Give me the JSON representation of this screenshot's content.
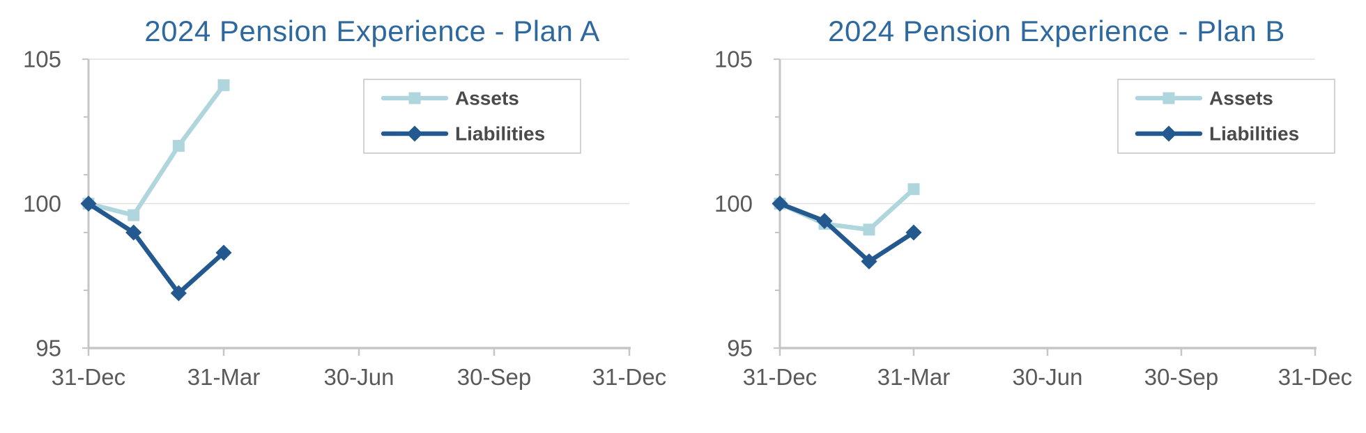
{
  "page": {
    "background_color": "#FFFFFF"
  },
  "styles": {
    "title_color": "#2D689F",
    "axis_label_color": "#595959",
    "legend_text_color": "#4A4A4A",
    "axis_line_color": "#C6C6C6",
    "tick_color": "#C6C6C6",
    "gridline_color": "#E0E0E0",
    "legend_border_color": "#C4C4C4",
    "legend_fill": "#FFFFFF",
    "assets_color": "#AFD6DD",
    "liabilities_color": "#23598F"
  },
  "chart_data": [
    {
      "type": "line",
      "title": "2024 Pension Experience - Plan A",
      "x_tick_labels": [
        "31-Dec",
        "31-Mar",
        "30-Jun",
        "30-Sep",
        "31-Dec"
      ],
      "x_axis_months_span": 12,
      "points_month_index": [
        0,
        1,
        2,
        3
      ],
      "series": [
        {
          "name": "Assets",
          "marker": "square",
          "color": "#AFD6DD",
          "values": [
            100,
            99.6,
            102.0,
            104.1
          ]
        },
        {
          "name": "Liabilities",
          "marker": "diamond",
          "color": "#23598F",
          "values": [
            100,
            99.0,
            96.9,
            98.3
          ]
        }
      ],
      "y_axis": {
        "min": 95,
        "max": 105,
        "major_ticks": [
          95,
          100,
          105
        ],
        "major_tick_labels": [
          "95",
          "100",
          "105"
        ],
        "minor_ticks": [
          97,
          99,
          101,
          103
        ],
        "gridlines_at": [
          100,
          105
        ]
      },
      "legend": {
        "position": "top-right",
        "entries": [
          "Assets",
          "Liabilities"
        ]
      },
      "grid": "horizontal-major"
    },
    {
      "type": "line",
      "title": "2024 Pension Experience - Plan B",
      "x_tick_labels": [
        "31-Dec",
        "31-Mar",
        "30-Jun",
        "30-Sep",
        "31-Dec"
      ],
      "x_axis_months_span": 12,
      "points_month_index": [
        0,
        1,
        2,
        3
      ],
      "series": [
        {
          "name": "Assets",
          "marker": "square",
          "color": "#AFD6DD",
          "values": [
            100,
            99.3,
            99.1,
            100.5
          ]
        },
        {
          "name": "Liabilities",
          "marker": "diamond",
          "color": "#23598F",
          "values": [
            100,
            99.4,
            98.0,
            99.0
          ]
        }
      ],
      "y_axis": {
        "min": 95,
        "max": 105,
        "major_ticks": [
          95,
          100,
          105
        ],
        "major_tick_labels": [
          "95",
          "100",
          "105"
        ],
        "minor_ticks": [
          97,
          99,
          101,
          103
        ],
        "gridlines_at": [
          100,
          105
        ]
      },
      "legend": {
        "position": "top-right",
        "entries": [
          "Assets",
          "Liabilities"
        ]
      },
      "grid": "horizontal-major"
    }
  ]
}
